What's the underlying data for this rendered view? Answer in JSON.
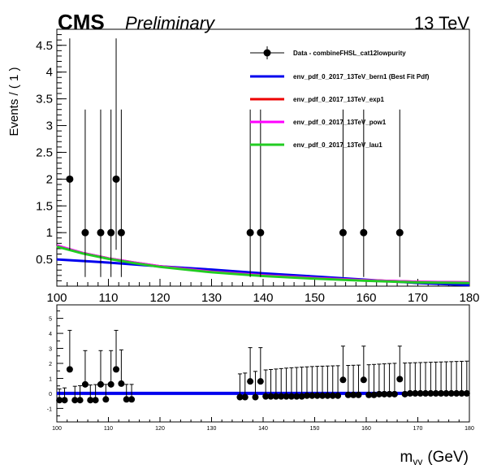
{
  "header": {
    "experiment": "CMS",
    "status": "Preliminary",
    "energy": "13 TeV"
  },
  "chart_data": [
    {
      "type": "scatter",
      "panel": "main",
      "ylabel": "Events / ( 1 )",
      "xlabel": "",
      "xlim": [
        100,
        180
      ],
      "ylim": [
        0,
        4.8
      ],
      "x_ticks": [
        100,
        110,
        120,
        130,
        140,
        150,
        160,
        170,
        180
      ],
      "y_ticks": [
        0.5,
        1,
        1.5,
        2,
        2.5,
        3,
        3.5,
        4,
        4.5
      ],
      "y_tick_labels": [
        "0.5",
        "1",
        "1.5",
        "2",
        "2.5",
        "3",
        "3.5",
        "4",
        "4.5"
      ],
      "legend_placement": "top-right",
      "data_series": {
        "name": "Data - combineFHSL_cat12lowpurity",
        "color": "#000000",
        "points": [
          {
            "x": 102.5,
            "y": 2,
            "err_lo": 1.32,
            "err_hi": 2.63
          },
          {
            "x": 105.5,
            "y": 1,
            "err_lo": 0.83,
            "err_hi": 2.3
          },
          {
            "x": 108.5,
            "y": 1,
            "err_lo": 0.83,
            "err_hi": 2.3
          },
          {
            "x": 110.5,
            "y": 1,
            "err_lo": 0.83,
            "err_hi": 2.3
          },
          {
            "x": 111.5,
            "y": 2,
            "err_lo": 1.32,
            "err_hi": 2.63
          },
          {
            "x": 112.5,
            "y": 1,
            "err_lo": 0.83,
            "err_hi": 2.3
          },
          {
            "x": 137.5,
            "y": 1,
            "err_lo": 0.83,
            "err_hi": 2.3
          },
          {
            "x": 139.5,
            "y": 1,
            "err_lo": 0.83,
            "err_hi": 2.3
          },
          {
            "x": 155.5,
            "y": 1,
            "err_lo": 0.83,
            "err_hi": 2.3
          },
          {
            "x": 159.5,
            "y": 1,
            "err_lo": 0.83,
            "err_hi": 2.3
          },
          {
            "x": 166.5,
            "y": 1,
            "err_lo": 0.83,
            "err_hi": 2.3
          }
        ]
      },
      "curves": [
        {
          "name": "env_pdf_0_2017_13TeV_bern1 (Best Fit Pdf)",
          "color": "#0000ee",
          "x": [
            100,
            110,
            120,
            130,
            140,
            150,
            160,
            170,
            180
          ],
          "y": [
            0.5,
            0.44,
            0.37,
            0.31,
            0.24,
            0.18,
            0.12,
            0.06,
            0.02
          ]
        },
        {
          "name": "env_pdf_0_2017_13TeV_exp1",
          "color": "#ee0000",
          "x": [
            100,
            105,
            110,
            115,
            120,
            130,
            140,
            150,
            160,
            170,
            180
          ],
          "y": [
            0.75,
            0.62,
            0.52,
            0.44,
            0.37,
            0.27,
            0.2,
            0.15,
            0.11,
            0.08,
            0.07
          ]
        },
        {
          "name": "env_pdf_0_2017_13TeV_pow1",
          "color": "#ff00ff",
          "x": [
            100,
            105,
            110,
            115,
            120,
            130,
            140,
            150,
            160,
            170,
            180
          ],
          "y": [
            0.76,
            0.62,
            0.52,
            0.44,
            0.37,
            0.27,
            0.2,
            0.15,
            0.11,
            0.08,
            0.07
          ]
        },
        {
          "name": "env_pdf_0_2017_13TeV_lau1",
          "color": "#22cc22",
          "x": [
            100,
            105,
            110,
            115,
            120,
            130,
            140,
            150,
            160,
            170,
            180
          ],
          "y": [
            0.74,
            0.61,
            0.51,
            0.43,
            0.36,
            0.26,
            0.19,
            0.14,
            0.1,
            0.07,
            0.06
          ]
        }
      ]
    },
    {
      "type": "scatter",
      "panel": "ratio",
      "xlabel": "m_γγ (GeV)",
      "xlabel_main": "m",
      "xlabel_sub": "γγ",
      "xlabel_unit": "(GeV)",
      "xlim": [
        100,
        180
      ],
      "ylim": [
        -1.9,
        5.9
      ],
      "x_ticks": [
        100,
        110,
        120,
        130,
        140,
        150,
        160,
        170,
        180
      ],
      "y_ticks": [
        -1,
        0,
        1,
        2,
        3,
        4,
        5
      ],
      "baseline": {
        "y": 0,
        "color": "#0000ee"
      },
      "points": [
        {
          "x": 100.5,
          "y": -0.45,
          "err": 0.1
        },
        {
          "x": 101.5,
          "y": -0.45,
          "err": 0.1
        },
        {
          "x": 102.5,
          "y": 1.6,
          "err": 2.6
        },
        {
          "x": 103.5,
          "y": -0.45,
          "err": 0.1
        },
        {
          "x": 104.5,
          "y": -0.45,
          "err": 0.1
        },
        {
          "x": 105.5,
          "y": 0.6,
          "err": 2.25
        },
        {
          "x": 106.5,
          "y": -0.45,
          "err": 0.1
        },
        {
          "x": 107.5,
          "y": -0.45,
          "err": 0.1
        },
        {
          "x": 108.5,
          "y": 0.6,
          "err": 2.25
        },
        {
          "x": 109.5,
          "y": -0.4,
          "err": 0.1
        },
        {
          "x": 110.5,
          "y": 0.6,
          "err": 2.25
        },
        {
          "x": 111.5,
          "y": 1.6,
          "err": 2.6
        },
        {
          "x": 112.5,
          "y": 0.65,
          "err": 2.25
        },
        {
          "x": 113.5,
          "y": -0.4,
          "err": 0.1
        },
        {
          "x": 114.5,
          "y": -0.4,
          "err": 0.1
        },
        {
          "x": 135.5,
          "y": -0.25,
          "err": 0.1
        },
        {
          "x": 136.5,
          "y": -0.25,
          "err": 0.1
        },
        {
          "x": 137.5,
          "y": 0.8,
          "err": 2.25
        },
        {
          "x": 138.5,
          "y": -0.25,
          "err": 0.1
        },
        {
          "x": 139.5,
          "y": 0.8,
          "err": 2.25
        },
        {
          "x": 140.5,
          "y": -0.2,
          "err": 0.1
        },
        {
          "x": 141.5,
          "y": -0.2,
          "err": 0.1
        },
        {
          "x": 142.5,
          "y": -0.2,
          "err": 0.1
        },
        {
          "x": 143.5,
          "y": -0.2,
          "err": 0.1
        },
        {
          "x": 144.5,
          "y": -0.2,
          "err": 0.1
        },
        {
          "x": 145.5,
          "y": -0.2,
          "err": 0.1
        },
        {
          "x": 146.5,
          "y": -0.2,
          "err": 0.1
        },
        {
          "x": 147.5,
          "y": -0.2,
          "err": 0.1
        },
        {
          "x": 148.5,
          "y": -0.15,
          "err": 0.1
        },
        {
          "x": 149.5,
          "y": -0.15,
          "err": 0.1
        },
        {
          "x": 150.5,
          "y": -0.15,
          "err": 0.1
        },
        {
          "x": 151.5,
          "y": -0.15,
          "err": 0.1
        },
        {
          "x": 152.5,
          "y": -0.15,
          "err": 0.1
        },
        {
          "x": 153.5,
          "y": -0.15,
          "err": 0.1
        },
        {
          "x": 154.5,
          "y": -0.15,
          "err": 0.1
        },
        {
          "x": 155.5,
          "y": 0.9,
          "err": 2.25
        },
        {
          "x": 156.5,
          "y": -0.1,
          "err": 0.1
        },
        {
          "x": 157.5,
          "y": -0.1,
          "err": 0.1
        },
        {
          "x": 158.5,
          "y": -0.1,
          "err": 0.1
        },
        {
          "x": 159.5,
          "y": 0.9,
          "err": 2.25
        },
        {
          "x": 160.5,
          "y": -0.1,
          "err": 0.1
        },
        {
          "x": 161.5,
          "y": -0.1,
          "err": 0.1
        },
        {
          "x": 162.5,
          "y": -0.05,
          "err": 0.1
        },
        {
          "x": 163.5,
          "y": -0.05,
          "err": 0.1
        },
        {
          "x": 164.5,
          "y": -0.05,
          "err": 0.1
        },
        {
          "x": 165.5,
          "y": -0.05,
          "err": 0.1
        },
        {
          "x": 166.5,
          "y": 0.95,
          "err": 2.2
        },
        {
          "x": 167.5,
          "y": -0.05,
          "err": 0.1
        },
        {
          "x": 168.5,
          "y": 0.0,
          "err": 0.1
        },
        {
          "x": 169.5,
          "y": 0.0,
          "err": 0.1
        },
        {
          "x": 170.5,
          "y": 0.0,
          "err": 0.1
        },
        {
          "x": 171.5,
          "y": 0.0,
          "err": 0.1
        },
        {
          "x": 172.5,
          "y": 0.0,
          "err": 0.1
        },
        {
          "x": 173.5,
          "y": 0.0,
          "err": 0.1
        },
        {
          "x": 174.5,
          "y": 0.0,
          "err": 0.1
        },
        {
          "x": 175.5,
          "y": 0.0,
          "err": 0.1
        },
        {
          "x": 176.5,
          "y": 0.0,
          "err": 0.1
        },
        {
          "x": 177.5,
          "y": 0.0,
          "err": 0.1
        },
        {
          "x": 178.5,
          "y": 0.0,
          "err": 0.1
        },
        {
          "x": 179.5,
          "y": 0.0,
          "err": 0.1
        }
      ],
      "upper_error_band": {
        "x": [
          135.5,
          140,
          145,
          150,
          155,
          160,
          165,
          170,
          175,
          179.5
        ],
        "y": [
          1.3,
          1.55,
          1.7,
          1.8,
          1.85,
          1.9,
          2.0,
          2.05,
          2.1,
          2.15
        ],
        "x_low": [
          100.5,
          102,
          104,
          106,
          108,
          110,
          112,
          114.5
        ],
        "y_low": [
          0.3,
          0.4,
          0.5,
          0.55,
          0.6,
          0.6,
          0.6,
          0.6
        ]
      }
    }
  ]
}
